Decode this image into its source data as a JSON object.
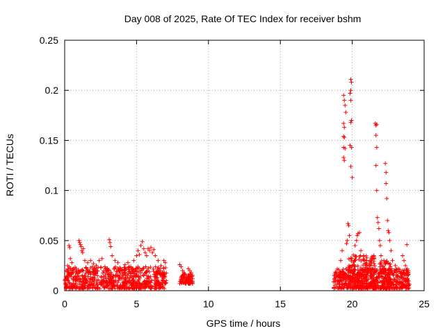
{
  "chart_data": {
    "type": "scatter",
    "title": "Day 008 of 2025, Rate Of TEC Index for receiver bshm",
    "xlabel": "GPS time / hours",
    "ylabel": "ROTI / TECUs",
    "xlim": [
      0,
      25
    ],
    "ylim": [
      0,
      0.25
    ],
    "xticks": [
      "0",
      "5",
      "10",
      "15",
      "20",
      "25"
    ],
    "yticks": [
      "0",
      "0.05",
      "0.1",
      "0.15",
      "0.2",
      "0.25"
    ],
    "grid": true,
    "marker": "plus",
    "color": "#ff0000",
    "series": [
      {
        "points": [
          [
            0.3,
            0.045
          ],
          [
            0.35,
            0.043
          ],
          [
            0.4,
            0.032
          ],
          [
            0.1,
            0.02
          ],
          [
            0.2,
            0.025
          ],
          [
            0.5,
            0.028
          ],
          [
            0.6,
            0.018
          ],
          [
            0.8,
            0.022
          ],
          [
            1.0,
            0.05
          ],
          [
            1.05,
            0.048
          ],
          [
            1.1,
            0.046
          ],
          [
            1.15,
            0.044
          ],
          [
            1.2,
            0.04
          ],
          [
            1.25,
            0.038
          ],
          [
            1.3,
            0.042
          ],
          [
            1.4,
            0.03
          ],
          [
            1.6,
            0.028
          ],
          [
            1.8,
            0.03
          ],
          [
            2.0,
            0.027
          ],
          [
            2.2,
            0.025
          ],
          [
            2.4,
            0.03
          ],
          [
            2.6,
            0.032
          ],
          [
            2.8,
            0.024
          ],
          [
            3.1,
            0.051
          ],
          [
            3.15,
            0.048
          ],
          [
            3.2,
            0.044
          ],
          [
            3.3,
            0.035
          ],
          [
            3.5,
            0.03
          ],
          [
            3.7,
            0.028
          ],
          [
            3.9,
            0.022
          ],
          [
            4.2,
            0.026
          ],
          [
            4.4,
            0.028
          ],
          [
            4.6,
            0.024
          ],
          [
            4.8,
            0.03
          ],
          [
            5.0,
            0.035
          ],
          [
            5.1,
            0.04
          ],
          [
            5.2,
            0.036
          ],
          [
            5.3,
            0.045
          ],
          [
            5.4,
            0.049
          ],
          [
            5.5,
            0.042
          ],
          [
            5.6,
            0.038
          ],
          [
            5.7,
            0.035
          ],
          [
            5.8,
            0.042
          ],
          [
            5.9,
            0.04
          ],
          [
            6.0,
            0.043
          ],
          [
            6.1,
            0.038
          ],
          [
            6.2,
            0.041
          ],
          [
            6.3,
            0.035
          ],
          [
            6.5,
            0.03
          ],
          [
            6.7,
            0.025
          ],
          [
            6.9,
            0.03
          ],
          [
            7.0,
            0.028
          ],
          [
            8.0,
            0.026
          ],
          [
            8.1,
            0.024
          ],
          [
            8.2,
            0.02
          ],
          [
            8.3,
            0.018
          ],
          [
            8.6,
            0.022
          ],
          [
            8.7,
            0.02
          ],
          [
            8.8,
            0.018
          ],
          [
            19.2,
            0.03
          ],
          [
            19.3,
            0.04
          ],
          [
            19.4,
            0.195
          ],
          [
            19.45,
            0.19
          ],
          [
            19.5,
            0.185
          ],
          [
            19.55,
            0.178
          ],
          [
            19.4,
            0.167
          ],
          [
            19.45,
            0.163
          ],
          [
            19.4,
            0.154
          ],
          [
            19.45,
            0.153
          ],
          [
            19.4,
            0.143
          ],
          [
            19.5,
            0.142
          ],
          [
            19.4,
            0.133
          ],
          [
            19.45,
            0.13
          ],
          [
            19.7,
            0.067
          ],
          [
            19.75,
            0.065
          ],
          [
            19.65,
            0.05
          ],
          [
            19.6,
            0.047
          ],
          [
            19.8,
            0.055
          ],
          [
            19.9,
            0.211
          ],
          [
            19.95,
            0.208
          ],
          [
            19.9,
            0.2
          ],
          [
            19.85,
            0.197
          ],
          [
            19.9,
            0.19
          ],
          [
            19.95,
            0.17
          ],
          [
            19.9,
            0.168
          ],
          [
            19.85,
            0.145
          ],
          [
            19.95,
            0.143
          ],
          [
            19.9,
            0.124
          ],
          [
            20.0,
            0.113
          ],
          [
            20.2,
            0.045
          ],
          [
            20.3,
            0.05
          ],
          [
            20.35,
            0.055
          ],
          [
            20.4,
            0.057
          ],
          [
            20.5,
            0.058
          ],
          [
            20.6,
            0.04
          ],
          [
            20.8,
            0.035
          ],
          [
            21.0,
            0.03
          ],
          [
            21.3,
            0.028
          ],
          [
            21.5,
            0.035
          ],
          [
            21.6,
            0.167
          ],
          [
            21.65,
            0.165
          ],
          [
            21.7,
            0.166
          ],
          [
            21.65,
            0.155
          ],
          [
            21.7,
            0.143
          ],
          [
            21.65,
            0.125
          ],
          [
            21.7,
            0.1
          ],
          [
            21.75,
            0.073
          ],
          [
            21.8,
            0.068
          ],
          [
            21.85,
            0.062
          ],
          [
            21.9,
            0.05
          ],
          [
            21.95,
            0.045
          ],
          [
            22.0,
            0.035
          ],
          [
            22.2,
            0.03
          ],
          [
            22.3,
            0.127
          ],
          [
            22.35,
            0.118
          ],
          [
            22.35,
            0.107
          ],
          [
            22.4,
            0.092
          ],
          [
            22.45,
            0.07
          ],
          [
            22.5,
            0.06
          ],
          [
            22.55,
            0.058
          ],
          [
            22.6,
            0.05
          ],
          [
            22.7,
            0.04
          ],
          [
            22.8,
            0.03
          ],
          [
            23.0,
            0.025
          ],
          [
            23.2,
            0.022
          ],
          [
            23.5,
            0.035
          ],
          [
            23.6,
            0.03
          ],
          [
            23.8,
            0.046
          ],
          [
            23.7,
            0.025
          ],
          [
            23.9,
            0.02
          ]
        ],
        "bands": [
          {
            "x": [
              0.0,
              7.1
            ],
            "y": [
              0.0,
              0.022
            ]
          },
          {
            "x": [
              8.0,
              8.9
            ],
            "y": [
              0.005,
              0.016
            ]
          },
          {
            "x": [
              18.7,
              24.0
            ],
            "y": [
              0.0,
              0.02
            ]
          },
          {
            "x": [
              19.7,
              21.6
            ],
            "y": [
              0.0,
              0.034
            ]
          },
          {
            "x": [
              21.9,
              22.7
            ],
            "y": [
              0.0,
              0.028
            ]
          }
        ]
      }
    ]
  }
}
